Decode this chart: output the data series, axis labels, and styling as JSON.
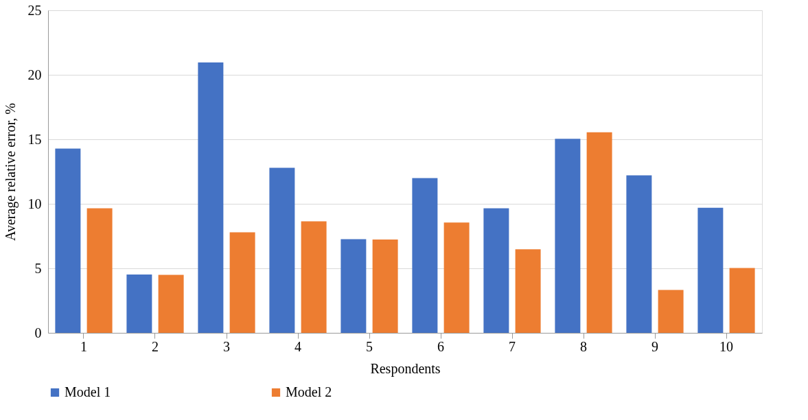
{
  "chart_data": {
    "type": "bar",
    "xlabel": "Respondents",
    "ylabel": "Average relative error, %",
    "categories": [
      "1",
      "2",
      "3",
      "4",
      "5",
      "6",
      "7",
      "8",
      "9",
      "10"
    ],
    "series": [
      {
        "name": "Model 1",
        "color": "#4472c4",
        "values": [
          14.28,
          4.52,
          20.96,
          12.79,
          7.26,
          11.99,
          9.65,
          15.04,
          12.21,
          9.7
        ]
      },
      {
        "name": "Model 2",
        "color": "#ed7d31",
        "values": [
          9.65,
          4.49,
          7.79,
          8.64,
          7.24,
          8.55,
          6.47,
          15.54,
          3.33,
          5.02
        ]
      }
    ],
    "ylim": [
      0,
      25
    ],
    "yticks": [
      0,
      5,
      10,
      15,
      20,
      25
    ],
    "grid": "y",
    "legend": "bottom"
  }
}
